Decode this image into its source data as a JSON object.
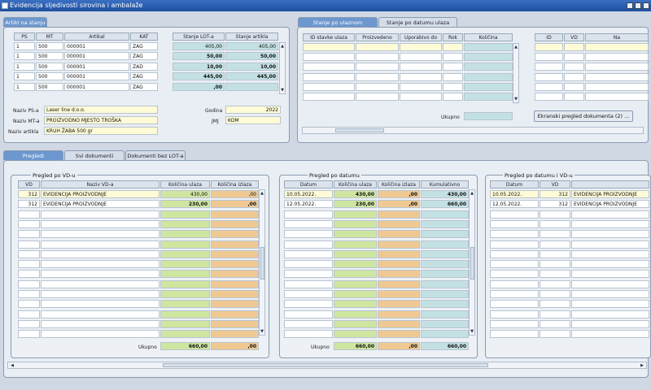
{
  "window": {
    "title": "Evidencija sljedivosti sirovina i ambalaže"
  },
  "artikl_panel": {
    "tab": "Artikl na stanju",
    "headers": [
      "PS",
      "MT",
      "Artikal",
      "KAT",
      "Stanje LOT-a",
      "Stanje artikla"
    ],
    "rows": [
      [
        "1",
        "500",
        "000001",
        "ZAG",
        "405,00",
        "405,00"
      ],
      [
        "1",
        "500",
        "000001",
        "ZAG",
        "50,00",
        "50,00"
      ],
      [
        "1",
        "500",
        "000001",
        "ZAD",
        "10,00",
        "10,00"
      ],
      [
        "1",
        "500",
        "000001",
        "ZAG",
        "445,00",
        "445,00"
      ],
      [
        "1",
        "500",
        "000001",
        "ZAG",
        ",00",
        ""
      ]
    ],
    "fields": {
      "naziv_ps_label": "Naziv PS-a",
      "naziv_ps": "Laser line d.o.o.",
      "naziv_mt_label": "Naziv MT-a",
      "naziv_mt": "PROIZVODNO MJESTO TROŠKA",
      "naziv_artikla_label": "Naziv artikla",
      "naziv_artikla": "KRUH ŽABA 500 gr",
      "godina_label": "Godina",
      "godina": "2022",
      "jmj_label": "JMJ",
      "jmj": "KOM"
    }
  },
  "stanje_panel": {
    "tabs": [
      "Stanje po ulaznom dokumentu",
      "Stanje po datumu ulaza"
    ],
    "headers": [
      "ID stavke ulaza",
      "Proizvedeno",
      "Uporabivo do",
      "Rok",
      "Količina"
    ],
    "right_headers": [
      "ID",
      "VD",
      "Na"
    ],
    "ukupno_label": "Ukupno",
    "button": "Ekranski pregled dokumenta (2) ..."
  },
  "lower_tabs": [
    "Pregledi",
    "Svi dokumenti",
    "Dokumenti bez LOT-a"
  ],
  "pregled_vd": {
    "title": "Pregled po VD-u",
    "headers": [
      "VD",
      "Naziv VD-a",
      "Količina ulaza",
      "Količina izlaza"
    ],
    "rows": [
      [
        "312",
        "EVIDENCIJA PROIZVODNJE",
        "430,00",
        ",00"
      ],
      [
        "312",
        "EVIDENCIJA PROIZVODNJE",
        "230,00",
        ",00"
      ]
    ],
    "ukupno_label": "Ukupno",
    "ukupno": [
      "660,00",
      ",00"
    ]
  },
  "pregled_datum": {
    "title": "Pregled po datumu",
    "headers": [
      "Datum",
      "Količina ulaza",
      "Količina izlaza",
      "Kumulativno"
    ],
    "rows": [
      [
        "10.05.2022.",
        "430,00",
        ",00",
        "430,00"
      ],
      [
        "12.05.2022.",
        "230,00",
        ",00",
        "660,00"
      ]
    ],
    "ukupno_label": "Ukupno",
    "ukupno": [
      "660,00",
      ",00",
      "660,00"
    ]
  },
  "pregled_datum_vd": {
    "title": "Pregled po datumu i VD-u",
    "headers": [
      "Datum",
      "VD",
      ""
    ],
    "rows": [
      [
        "10.05.2022.",
        "312",
        "EVIDENCIJA PROIZVODNJE"
      ],
      [
        "12.05.2022.",
        "312",
        "EVIDENCIJA PROIZVODNJE"
      ]
    ]
  }
}
